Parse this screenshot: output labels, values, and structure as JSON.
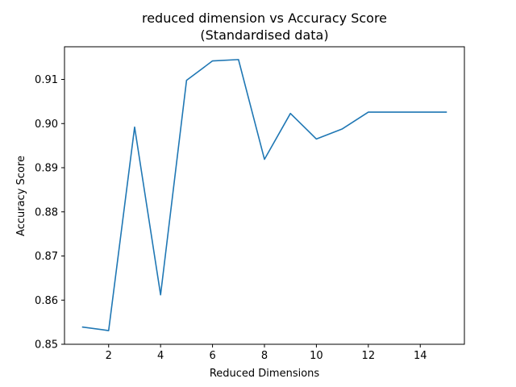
{
  "chart_data": {
    "type": "line",
    "title": "reduced dimension vs Accuracy Score",
    "subtitle": "(Standardised data)",
    "xlabel": "Reduced Dimensions",
    "ylabel": "Accuracy Score",
    "xlim": [
      0.3,
      15.7
    ],
    "ylim": [
      0.85,
      0.9174
    ],
    "xticks": [
      2,
      4,
      6,
      8,
      10,
      12,
      14
    ],
    "yticks": [
      0.85,
      0.86,
      0.87,
      0.88,
      0.89,
      0.9,
      0.91
    ],
    "ytick_labels": [
      "0.85",
      "0.86",
      "0.87",
      "0.88",
      "0.89",
      "0.90",
      "0.91"
    ],
    "grid": false,
    "series": [
      {
        "color": "#1f77b4",
        "x": [
          1,
          2,
          3,
          4,
          5,
          6,
          7,
          8,
          9,
          10,
          11,
          12,
          13,
          14,
          15
        ],
        "y": [
          0.8539,
          0.8531,
          0.8992,
          0.8612,
          0.9098,
          0.9142,
          0.9145,
          0.8919,
          0.9023,
          0.8965,
          0.8988,
          0.9026,
          0.9026,
          0.9026,
          0.9026
        ]
      }
    ]
  }
}
